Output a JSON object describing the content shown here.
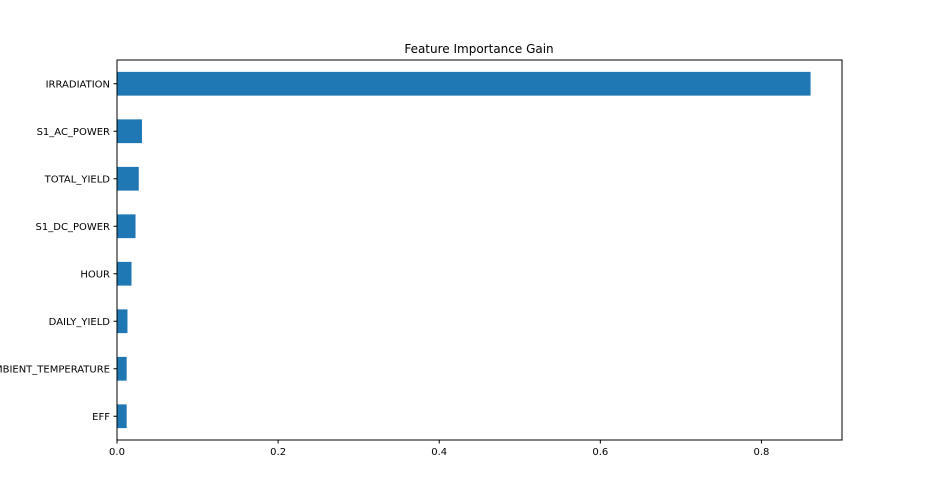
{
  "chart_data": {
    "type": "bar",
    "orientation": "horizontal",
    "title": "Feature Importance Gain",
    "xlabel": "",
    "ylabel": "",
    "categories": [
      "IRRADIATION",
      "S1_AC_POWER",
      "TOTAL_YIELD",
      "S1_DC_POWER",
      "HOUR",
      "DAILY_YIELD",
      "AMBIENT_TEMPERATURE",
      "EFF"
    ],
    "values": [
      0.861,
      0.031,
      0.027,
      0.023,
      0.018,
      0.013,
      0.012,
      0.012
    ],
    "xlim": [
      0,
      0.9
    ],
    "xticks": [
      0.0,
      0.2,
      0.4,
      0.6,
      0.8
    ],
    "xtick_labels": [
      "0.0",
      "0.2",
      "0.4",
      "0.6",
      "0.8"
    ],
    "bar_color": "#1f77b4",
    "grid": false,
    "legend": "none"
  }
}
